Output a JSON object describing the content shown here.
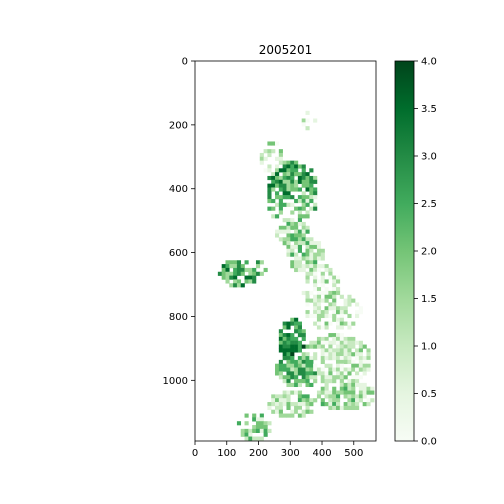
{
  "chart_data": {
    "type": "heatmap",
    "title": "2005201",
    "xlabel": "",
    "ylabel": "",
    "xlim": [
      0,
      570
    ],
    "ylim": [
      1190,
      0
    ],
    "x_ticks": [
      "0",
      "100",
      "200",
      "300",
      "400",
      "500"
    ],
    "y_ticks": [
      "0",
      "200",
      "400",
      "600",
      "800",
      "1000"
    ],
    "colormap": "Greens",
    "colorbar": {
      "range": [
        0.0,
        4.0
      ],
      "ticks": [
        "0.0",
        "0.5",
        "1.0",
        "1.5",
        "2.0",
        "2.5",
        "3.0",
        "3.5",
        "4.0"
      ]
    },
    "colors": {
      "low": "#f7fcf5",
      "mid": "#74c476",
      "high": "#00441b"
    },
    "grid": false
  }
}
